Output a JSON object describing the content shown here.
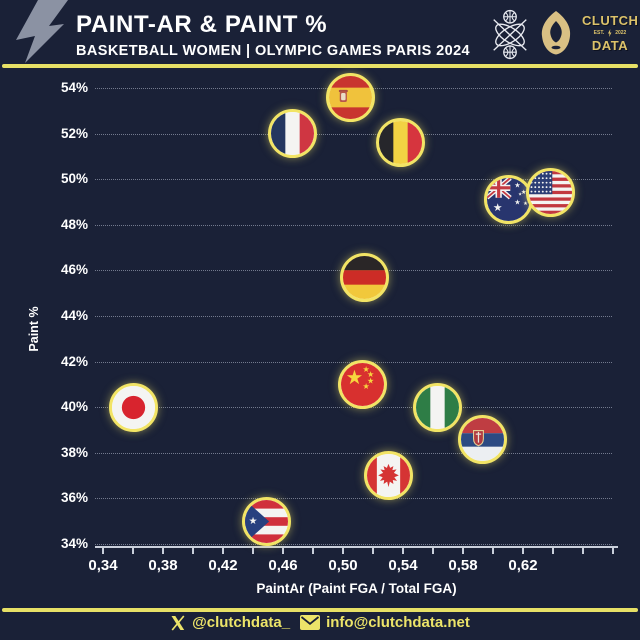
{
  "header": {
    "title": "PAINT-AR & PAINT %",
    "subtitle": "BASKETBALL WOMEN | OLYMPIC GAMES PARIS 2024",
    "brand": {
      "top": "CLUTCH",
      "est": "EST.",
      "year": "2022",
      "bottom": "DATA"
    },
    "icons": [
      "lightning-bolt-icon",
      "crossed-basketballs-icon",
      "paris-2024-flame-icon"
    ]
  },
  "footer": {
    "twitter": "@clutchdata_",
    "email": "info@clutchdata.net",
    "icons": [
      "x-logo-icon",
      "envelope-icon"
    ]
  },
  "colors": {
    "background": "#1a2137",
    "accent_yellow": "#e7e066",
    "logo_gold": "#dcc26a",
    "text": "#ffffff",
    "flag_ring": "#f2e465"
  },
  "chart_data": {
    "type": "scatter",
    "title": "PAINT-AR & PAINT %",
    "subtitle": "Basketball Women | Olympic Games Paris 2024",
    "xlabel": "PaintAr (Paint FGA / Total FGA)",
    "ylabel": "Paint %",
    "xlim": [
      0.325,
      0.68
    ],
    "ylim": [
      33,
      55
    ],
    "grid": "horizontal-dotted",
    "legend": "none",
    "marker": "circular-country-flag",
    "xticks": [
      0.34,
      0.38,
      0.42,
      0.46,
      0.5,
      0.54,
      0.58,
      0.62
    ],
    "xtick_labels": [
      "0,34",
      "0,38",
      "0,42",
      "0,46",
      "0,50",
      "0,54",
      "0,58",
      "0,62"
    ],
    "xtick_minor_step": 0.02,
    "yticks": [
      34,
      36,
      38,
      40,
      42,
      44,
      46,
      48,
      50,
      52,
      54
    ],
    "ytick_labels": [
      "34%",
      "36%",
      "38%",
      "40%",
      "42%",
      "44%",
      "46%",
      "48%",
      "50%",
      "52%",
      "54%"
    ],
    "points": [
      {
        "team": "Japan",
        "flag": "japan",
        "x": 0.36,
        "y": 40.0
      },
      {
        "team": "Puerto Rico",
        "flag": "puerto-rico",
        "x": 0.449,
        "y": 35.0
      },
      {
        "team": "France",
        "flag": "france",
        "x": 0.466,
        "y": 52.0
      },
      {
        "team": "Spain",
        "flag": "spain",
        "x": 0.505,
        "y": 53.6
      },
      {
        "team": "Germany",
        "flag": "germany",
        "x": 0.514,
        "y": 45.7
      },
      {
        "team": "China",
        "flag": "china",
        "x": 0.513,
        "y": 41.0
      },
      {
        "team": "Belgium",
        "flag": "belgium",
        "x": 0.538,
        "y": 51.6
      },
      {
        "team": "Canada",
        "flag": "canada",
        "x": 0.53,
        "y": 37.0
      },
      {
        "team": "Nigeria",
        "flag": "nigeria",
        "x": 0.563,
        "y": 40.0
      },
      {
        "team": "Serbia",
        "flag": "serbia",
        "x": 0.593,
        "y": 38.6
      },
      {
        "team": "Australia",
        "flag": "australia",
        "x": 0.61,
        "y": 49.1
      },
      {
        "team": "USA",
        "flag": "usa",
        "x": 0.638,
        "y": 49.4
      }
    ]
  }
}
